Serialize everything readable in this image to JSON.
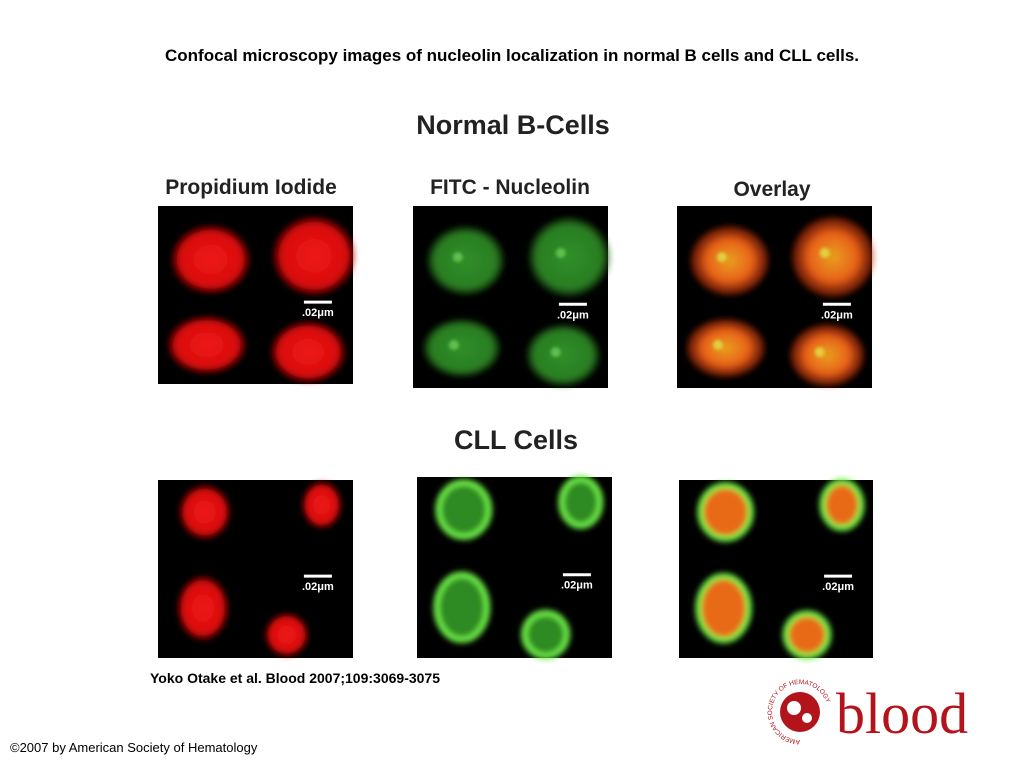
{
  "title": "Confocal microscopy images of nucleolin localization in normal B cells and CLL cells.",
  "normal": {
    "heading": "Normal B-Cells",
    "columns": [
      "Propidium Iodide",
      "FITC - Nucleolin",
      "Overlay"
    ],
    "scale_labels": [
      ".02μm",
      ".02μm",
      ".02μm"
    ]
  },
  "cll": {
    "heading": "CLL Cells",
    "scale_labels": [
      ".02μm",
      ".02μm",
      ".02μm"
    ]
  },
  "citation": "Yoko Otake et al. Blood 2007;109:3069-3075",
  "copyright": "©2007 by American Society of Hematology",
  "logo": {
    "text": "blood",
    "ring": "AMERICAN SOCIETY OF HEMATOLOGY"
  }
}
